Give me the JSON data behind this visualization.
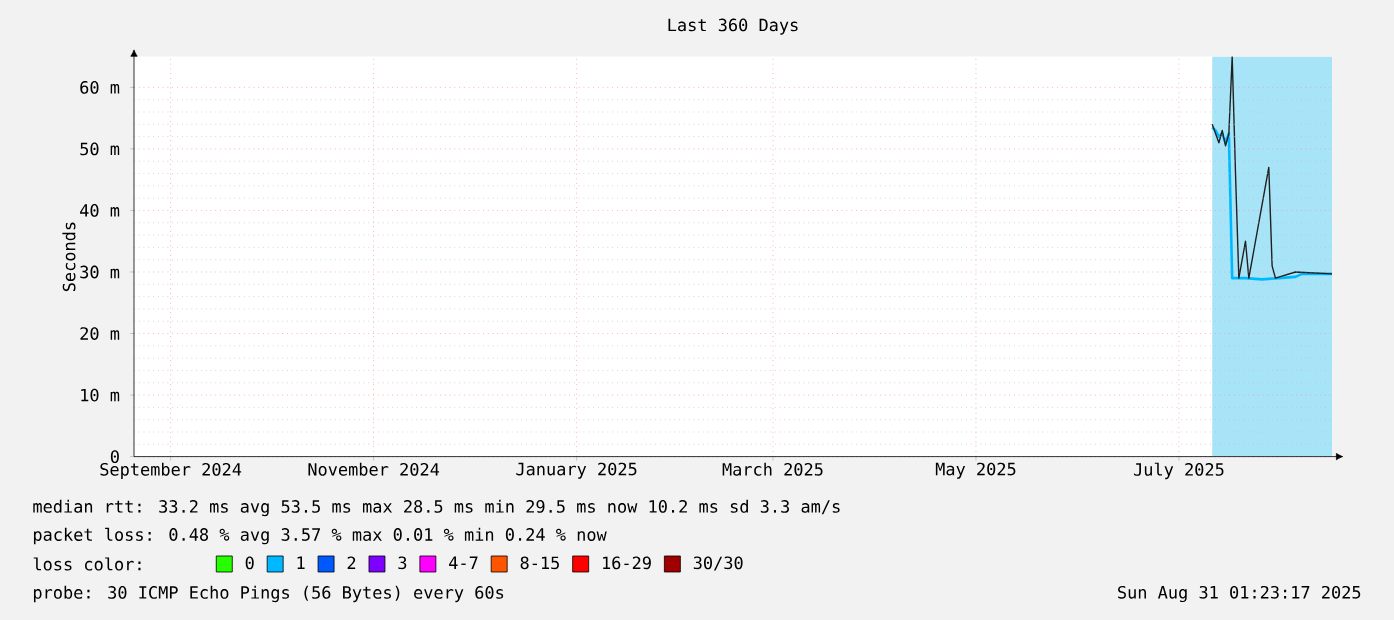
{
  "chart_data": {
    "type": "line",
    "title": "Last 360 Days",
    "ylabel": "Seconds",
    "legend_title": "loss color:",
    "xlim": [
      "2024-09-05",
      "2025-08-31"
    ],
    "xticks": [
      {
        "value": "2024-09-16",
        "label": "September 2024"
      },
      {
        "value": "2024-11-16",
        "label": "November 2024"
      },
      {
        "value": "2025-01-16",
        "label": "January 2025"
      },
      {
        "value": "2025-03-16",
        "label": "March 2025"
      },
      {
        "value": "2025-05-16",
        "label": "May 2025"
      },
      {
        "value": "2025-07-16",
        "label": "July 2025"
      }
    ],
    "ylim": [
      0,
      65
    ],
    "yticks": [
      {
        "value": 0,
        "label": "0"
      },
      {
        "value": 10,
        "label": "10 m"
      },
      {
        "value": 20,
        "label": "20 m"
      },
      {
        "value": 30,
        "label": "30 m"
      },
      {
        "value": 40,
        "label": "40 m"
      },
      {
        "value": 50,
        "label": "50 m"
      },
      {
        "value": 60,
        "label": "60 m"
      }
    ],
    "grid": true,
    "legend": "bottom",
    "marker": "none",
    "line_style": "solid",
    "bands": [
      {
        "axis": "x",
        "from": "2025-07-26",
        "to": "2025-08-31",
        "color": "#a8e4f8"
      }
    ],
    "series": [
      {
        "name": "0",
        "color": "#26ff00",
        "values": [
          null
        ]
      },
      {
        "name": "1",
        "color": "#00b8ff",
        "x": [
          "2025-07-26",
          "2025-07-27",
          "2025-07-28",
          "2025-07-29",
          "2025-07-30",
          "2025-07-31",
          "2025-08-01",
          "2025-08-05",
          "2025-08-10",
          "2025-08-15",
          "2025-08-20",
          "2025-08-22",
          "2025-08-25",
          "2025-08-31"
        ],
        "values": [
          53.5,
          53,
          52,
          52.5,
          51,
          52.5,
          29,
          29,
          28.8,
          29,
          29.2,
          29.7,
          29.7,
          29.7
        ]
      },
      {
        "name": "2",
        "color": "#0059ff",
        "values": [
          null
        ]
      },
      {
        "name": "3",
        "color": "#7e00ff",
        "values": [
          null
        ]
      },
      {
        "name": "4-7",
        "color": "#ff00ff",
        "values": [
          null
        ]
      },
      {
        "name": "8-15",
        "color": "#ff5500",
        "values": [
          null
        ]
      },
      {
        "name": "16-29",
        "color": "#ff0000",
        "values": [
          null
        ]
      },
      {
        "name": "30/30",
        "color": "#a10000",
        "values": [
          null
        ]
      },
      {
        "color": "#202020",
        "x": [
          "2025-07-26",
          "2025-07-28",
          "2025-07-29",
          "2025-07-30",
          "2025-07-31",
          "2025-08-01",
          "2025-08-02",
          "2025-08-03",
          "2025-08-05",
          "2025-08-06",
          "2025-08-12",
          "2025-08-13",
          "2025-08-14",
          "2025-08-20",
          "2025-08-31"
        ],
        "values": [
          54,
          51,
          53,
          50.5,
          52.5,
          65,
          46,
          29,
          35,
          29,
          47,
          31,
          29,
          30,
          29.7
        ]
      }
    ],
    "annotations": [
      "median rtt: 33.2 ms avg 53.5 ms max 28.5 ms min 29.5 ms now 10.2 ms sd 3.3 am/s",
      "packet loss: 0.48 % avg 3.57 % max 0.01 % min 0.24 % now",
      "probe: 30 ICMP Echo Pings (56 Bytes) every 60s",
      "Sun Aug 31 01:23:17 2025"
    ]
  }
}
